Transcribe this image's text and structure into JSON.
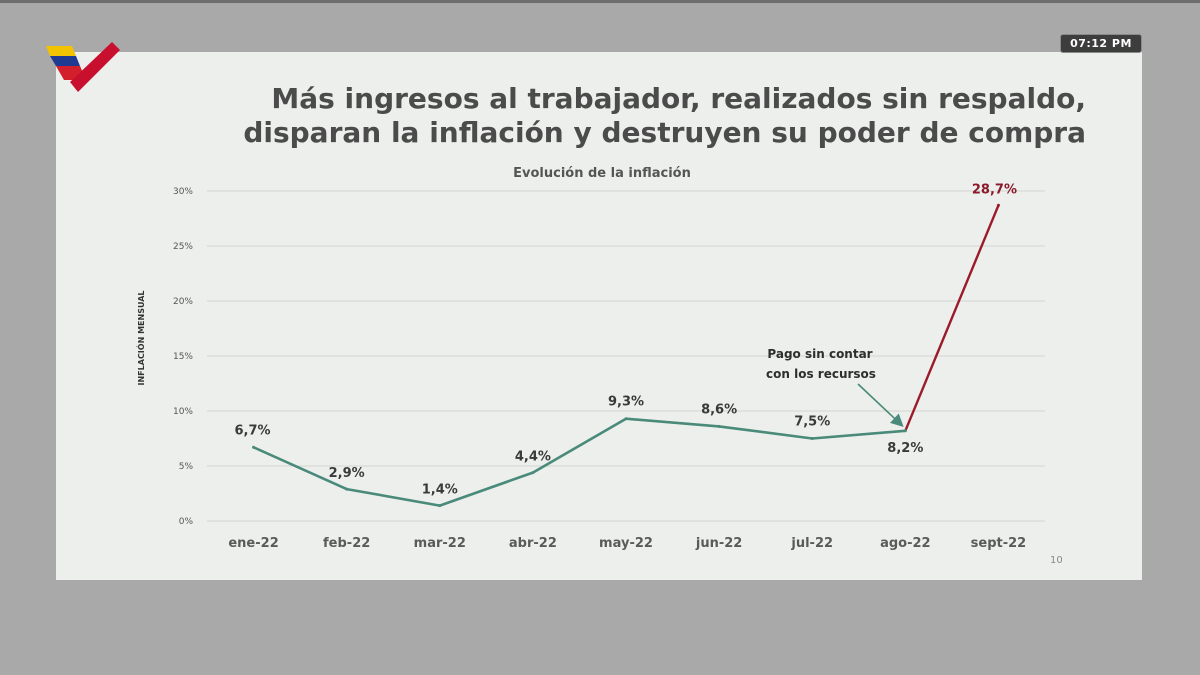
{
  "header": {
    "title_line1": "Más ingresos al trabajador, realizados sin respaldo,",
    "title_line2": "disparan la inflación y destruyen su poder de compra"
  },
  "clock": {
    "time": "07:12  PM"
  },
  "slide": {
    "page_number": "10"
  },
  "colors": {
    "line_main": "#4a8a7a",
    "line_highlight": "#9b1b2a",
    "highlight_label": "#8b1a2b",
    "title_text": "#4b4b4b",
    "grid": "#d2d4d2",
    "slide_bg": "#ecefec"
  },
  "chart_data": {
    "type": "line",
    "title": "Evolución de la inflación",
    "xlabel": "",
    "ylabel": "INFLACIÓN MENSUAL",
    "categories": [
      "ene-22",
      "feb-22",
      "mar-22",
      "abr-22",
      "may-22",
      "jun-22",
      "jul-22",
      "ago-22",
      "sept-22"
    ],
    "series": [
      {
        "values": [
          6.7,
          2.9,
          1.4,
          4.4,
          9.3,
          8.6,
          7.5,
          8.2,
          28.7
        ]
      }
    ],
    "data_labels": [
      "6,7%",
      "2,9%",
      "1,4%",
      "4,4%",
      "9,3%",
      "8,6%",
      "7,5%",
      "8,2%",
      "28,7%"
    ],
    "highlight_last_segment": true,
    "ylim": [
      0,
      30
    ],
    "yticks": [
      0,
      5,
      10,
      15,
      20,
      25,
      30
    ],
    "ytick_labels": [
      "0%",
      "5%",
      "10%",
      "15%",
      "20%",
      "25%",
      "30%"
    ],
    "grid": true,
    "annotation": {
      "line1": "Pago sin contar",
      "line2": "con los recursos",
      "target_category": "ago-22"
    }
  }
}
